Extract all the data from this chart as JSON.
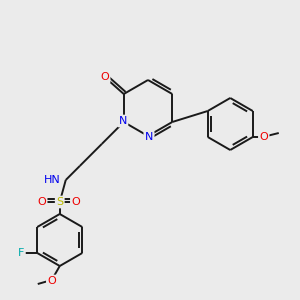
{
  "bg_color": "#ebebeb",
  "bond_color": "#1a1a1a",
  "atom_colors": {
    "N": "#0000ee",
    "O": "#ee0000",
    "S": "#bbbb00",
    "F": "#00aaaa",
    "H": "#888888",
    "C": "#1a1a1a"
  },
  "figsize": [
    3.0,
    3.0
  ],
  "dpi": 100
}
